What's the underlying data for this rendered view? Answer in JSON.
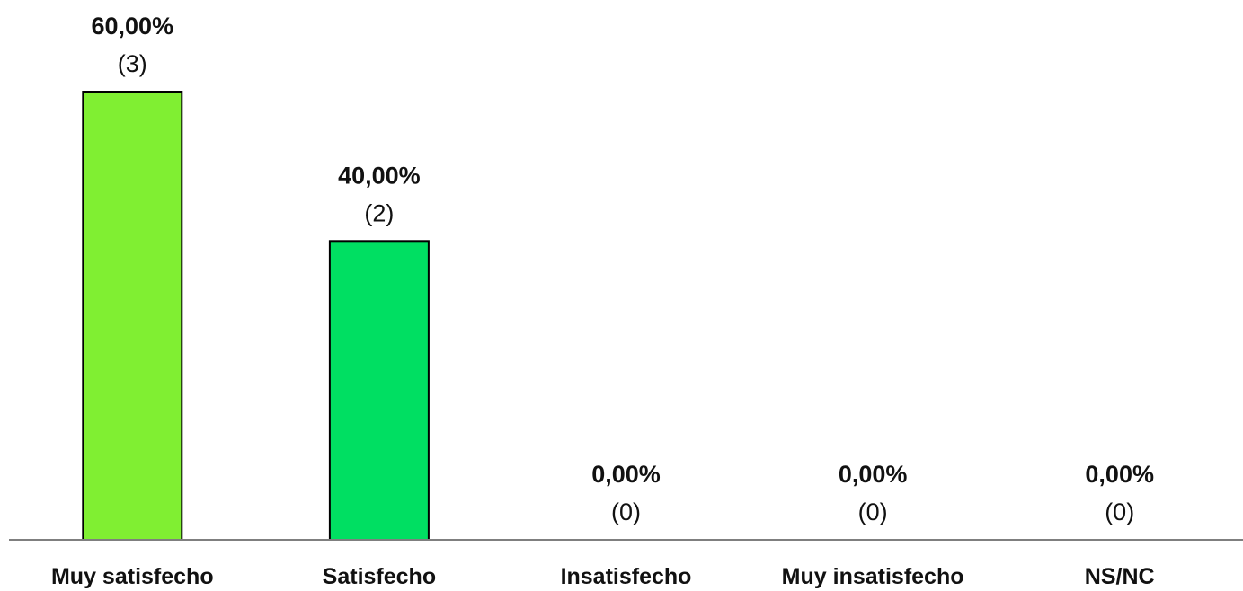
{
  "chart_data": {
    "type": "bar",
    "title": "",
    "xlabel": "",
    "ylabel": "",
    "categories": [
      "Muy satisfecho",
      "Satisfecho",
      "Insatisfecho",
      "Muy insatisfecho",
      "NS/NC"
    ],
    "values": [
      60,
      40,
      0,
      0,
      0
    ],
    "counts": [
      3,
      2,
      0,
      0,
      0
    ],
    "percent_labels": [
      "60,00%",
      "40,00%",
      "0,00%",
      "0,00%",
      "0,00%"
    ],
    "count_labels": [
      "(3)",
      "(2)",
      "(0)",
      "(0)",
      "(0)"
    ],
    "ylim": [
      0,
      60
    ],
    "grid": false,
    "legend": "none",
    "colors": [
      "#80ef32",
      "#00df62",
      "#00df62",
      "#00df62",
      "#00df62"
    ],
    "axis_color": "#7f7f7f",
    "bar_outline_color": "#000000"
  }
}
